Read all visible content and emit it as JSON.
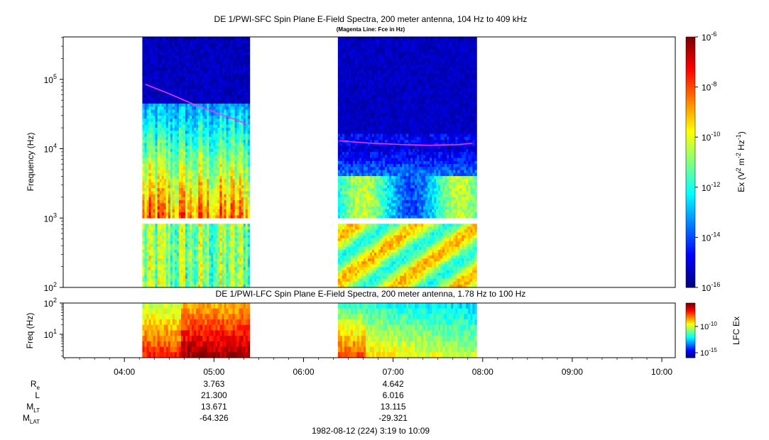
{
  "chart_data": [
    {
      "type": "heatmap",
      "title": "DE 1/PWI-SFC  Spin Plane E-Field Spectra, 200 meter antenna, 104 Hz to 409 kHz",
      "subtitle": "(Magenta Line: Fce in Hz)",
      "ylabel": "Frequency (Hz)",
      "yscale": "log",
      "ylim": [
        100,
        409000
      ],
      "y_ticks": [
        {
          "base": "10",
          "exp": "2",
          "value": 100
        },
        {
          "base": "10",
          "exp": "3",
          "value": 1000
        },
        {
          "base": "10",
          "exp": "4",
          "value": 10000
        },
        {
          "base": "10",
          "exp": "5",
          "value": 100000
        }
      ],
      "x_range": [
        "03:19",
        "10:09"
      ],
      "data_intervals": [
        {
          "start": "04:12",
          "end": "05:24"
        },
        {
          "start": "06:23",
          "end": "07:56"
        }
      ],
      "colorbar": {
        "label": "Ex (V",
        "label_exp1": "2",
        "label_mid": " m",
        "label_exp2": "-2",
        "label_mid2": " Hz",
        "label_exp3": "-1",
        "label_end": ")",
        "scale": "log",
        "range": [
          1e-16,
          1e-06
        ],
        "ticks": [
          {
            "base": "10",
            "exp": "-6",
            "value": 1e-06
          },
          {
            "base": "10",
            "exp": "-8",
            "value": 1e-08
          },
          {
            "base": "10",
            "exp": "-10",
            "value": 1e-10
          },
          {
            "base": "10",
            "exp": "-12",
            "value": 1e-12
          },
          {
            "base": "10",
            "exp": "-14",
            "value": 1e-14
          },
          {
            "base": "10",
            "exp": "-16",
            "value": 1e-16
          }
        ]
      },
      "fce_line": {
        "name": "Fce",
        "color": "#ff33ff",
        "segments": [
          [
            [
              "04:14",
              85000
            ],
            [
              "04:30",
              62000
            ],
            [
              "04:45",
              45000
            ],
            [
              "05:00",
              34000
            ],
            [
              "05:15",
              26000
            ],
            [
              "05:22",
              22500
            ]
          ],
          [
            [
              "06:24",
              13000
            ],
            [
              "06:45",
              12000
            ],
            [
              "07:05",
              11500
            ],
            [
              "07:25",
              11200
            ],
            [
              "07:45",
              11500
            ],
            [
              "07:53",
              12000
            ]
          ]
        ]
      }
    },
    {
      "type": "heatmap",
      "title": "DE 1/PWI-LFC  Spin Plane E-Field Spectra, 200 meter antenna, 1.78 Hz to 100 Hz",
      "ylabel": "Freq (Hz)",
      "yscale": "log",
      "ylim": [
        1.78,
        100
      ],
      "y_ticks": [
        {
          "base": "10",
          "exp": "1",
          "value": 10
        },
        {
          "base": "10",
          "exp": "2",
          "value": 100
        }
      ],
      "colorbar": {
        "label": "LFC Ex",
        "scale": "log",
        "ticks": [
          {
            "base": "10",
            "exp": "-10",
            "value": 1e-10
          },
          {
            "base": "10",
            "exp": "-15",
            "value": 1e-15
          }
        ]
      },
      "x_ticks": [
        "04:00",
        "05:00",
        "06:00",
        "07:00",
        "08:00",
        "09:00",
        "10:00"
      ]
    }
  ],
  "ephemeris": {
    "rows": [
      {
        "label": "R",
        "sub": "e",
        "values": [
          "3.763",
          "4.642"
        ]
      },
      {
        "label": "L",
        "sub": "",
        "values": [
          "21.300",
          "6.016"
        ]
      },
      {
        "label": "M",
        "sub": "LT",
        "values": [
          "13.671",
          "13.115"
        ]
      },
      {
        "label": "M",
        "sub": "LAT",
        "values": [
          "-64.326",
          "-29.321"
        ]
      }
    ],
    "times": [
      "05:00",
      "07:00"
    ]
  },
  "footer": "1982-08-12 (224) 3:19 to 10:09"
}
